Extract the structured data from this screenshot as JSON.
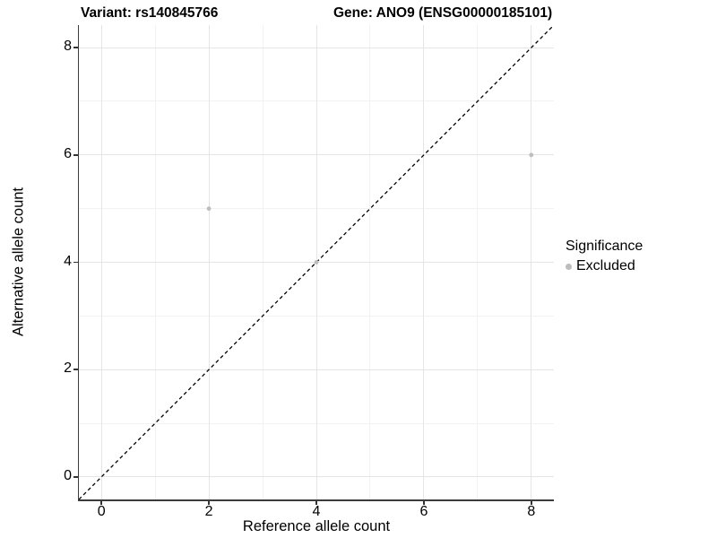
{
  "titles": {
    "variant": "Variant: rs140845766",
    "gene": "Gene: ANO9 (ENSG00000185101)"
  },
  "axes": {
    "x": {
      "label": "Reference allele count"
    },
    "y": {
      "label": "Alternative allele count"
    }
  },
  "legend": {
    "title": "Significance",
    "items": [
      {
        "label": "Excluded",
        "color": "#bdbdbd"
      }
    ]
  },
  "chart_data": {
    "type": "scatter",
    "title": "Variant: rs140845766   Gene: ANO9 (ENSG00000185101)",
    "xlabel": "Reference allele count",
    "ylabel": "Alternative allele count",
    "xlim": [
      -0.42,
      8.42
    ],
    "ylim": [
      -0.42,
      8.42
    ],
    "x_ticks": [
      0,
      2,
      4,
      6,
      8
    ],
    "y_ticks": [
      0,
      2,
      4,
      6,
      8
    ],
    "grid": true,
    "legend_position": "right",
    "series": [
      {
        "name": "Excluded",
        "color": "#bdbdbd",
        "point_radius": 2.4,
        "points": [
          [
            2,
            5
          ],
          [
            4,
            4
          ],
          [
            8,
            6
          ]
        ]
      }
    ],
    "reference_line": {
      "type": "identity-diagonal",
      "style": "dashed",
      "color": "#000000"
    },
    "colors": {
      "major_gridline": "#e5e5e5",
      "minor_gridline": "#f2f2f2",
      "axis_line": "#3c3c3c",
      "background": "#ffffff"
    }
  }
}
